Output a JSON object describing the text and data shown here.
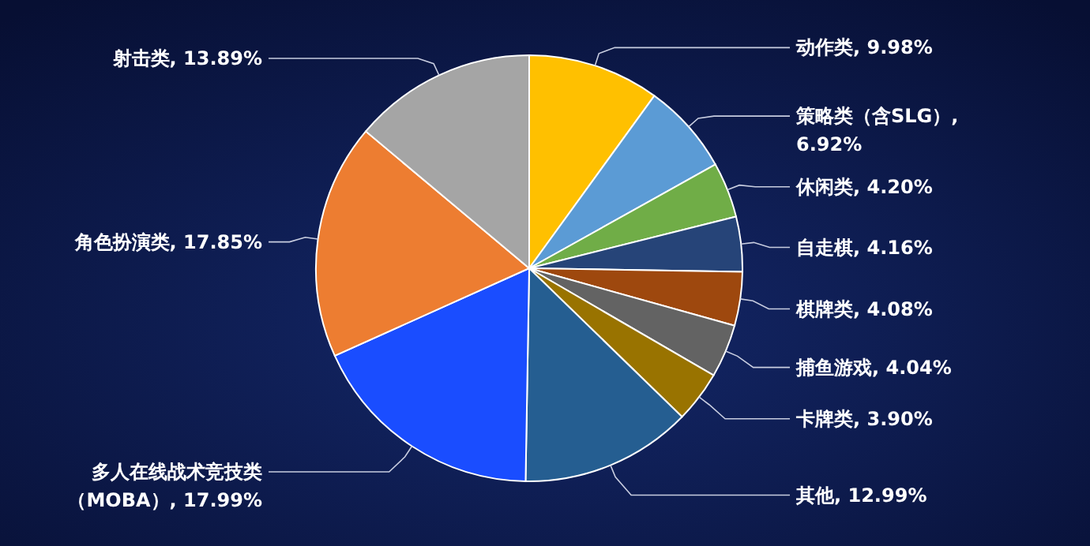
{
  "chart_data": {
    "type": "pie",
    "categories": [
      "动作类",
      "策略类（含SLG）",
      "休闲类",
      "自走棋",
      "棋牌类",
      "捕鱼游戏",
      "卡牌类",
      "其他",
      "多人在线战术竞技类（MOBA）",
      "角色扮演类",
      "射击类"
    ],
    "values": [
      9.98,
      6.92,
      4.2,
      4.16,
      4.08,
      4.04,
      3.9,
      12.99,
      17.99,
      17.85,
      13.89
    ],
    "colors": [
      "#ffc000",
      "#5b9bd5",
      "#70ad47",
      "#264478",
      "#9e480e",
      "#636363",
      "#997300",
      "#255e91",
      "#1a4dff",
      "#ed7d31",
      "#a5a5a5"
    ],
    "value_labels": [
      ", 9.98%",
      ", 6.92%",
      ", 4.20%",
      ", 4.16%",
      ", 4.08%",
      ", 4.04%",
      ", 3.90%",
      ", 12.99%",
      ", 17.99%",
      ", 17.85%",
      ", 13.89%"
    ]
  }
}
